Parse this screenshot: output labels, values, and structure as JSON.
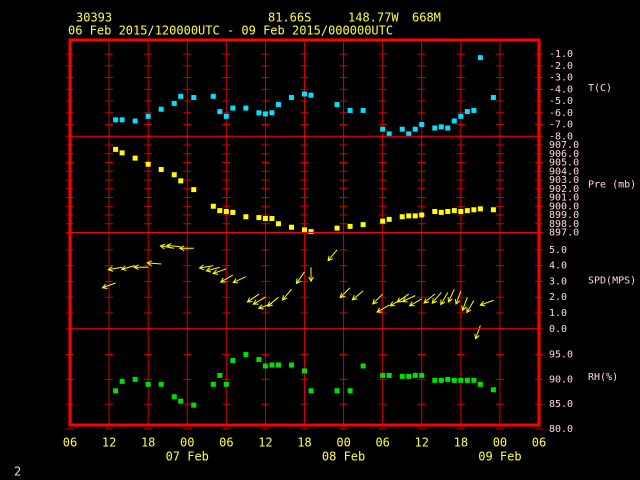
{
  "header": {
    "station": "30393",
    "lat": "81.66S",
    "lon": "148.77W",
    "elev": "668M",
    "period": "06 Feb 2015/120000UTC - 09 Feb 2015/000000UTC",
    "page": "2"
  },
  "x_axis": {
    "xlim": [
      "2015-02-06T06:00",
      "2015-02-09T06:00"
    ],
    "xticks": [
      {
        "value": "2015-02-06T06:00",
        "label": "06"
      },
      {
        "value": "2015-02-06T12:00",
        "label": "12"
      },
      {
        "value": "2015-02-06T18:00",
        "label": "18"
      },
      {
        "value": "2015-02-07T00:00",
        "label": "00"
      },
      {
        "value": "2015-02-07T06:00",
        "label": "06"
      },
      {
        "value": "2015-02-07T12:00",
        "label": "12"
      },
      {
        "value": "2015-02-07T18:00",
        "label": "18"
      },
      {
        "value": "2015-02-08T00:00",
        "label": "00"
      },
      {
        "value": "2015-02-08T06:00",
        "label": "06"
      },
      {
        "value": "2015-02-08T12:00",
        "label": "12"
      },
      {
        "value": "2015-02-08T18:00",
        "label": "18"
      },
      {
        "value": "2015-02-09T00:00",
        "label": "00"
      },
      {
        "value": "2015-02-09T06:00",
        "label": "06"
      }
    ],
    "date_labels": [
      {
        "value": "2015-02-07T00:00",
        "label": "07 Feb"
      },
      {
        "value": "2015-02-08T00:00",
        "label": "08 Feb"
      },
      {
        "value": "2015-02-09T00:00",
        "label": "09 Feb"
      }
    ],
    "x": [
      "2015-02-06T13:00",
      "2015-02-06T14:00",
      "2015-02-06T16:00",
      "2015-02-06T18:00",
      "2015-02-06T20:00",
      "2015-02-06T22:00",
      "2015-02-06T23:00",
      "2015-02-07T01:00",
      "2015-02-07T04:00",
      "2015-02-07T05:00",
      "2015-02-07T06:00",
      "2015-02-07T07:00",
      "2015-02-07T09:00",
      "2015-02-07T11:00",
      "2015-02-07T12:00",
      "2015-02-07T13:00",
      "2015-02-07T14:00",
      "2015-02-07T16:00",
      "2015-02-07T18:00",
      "2015-02-07T19:00",
      "2015-02-07T23:00",
      "2015-02-08T01:00",
      "2015-02-08T03:00",
      "2015-02-08T06:00",
      "2015-02-08T07:00",
      "2015-02-08T09:00",
      "2015-02-08T10:00",
      "2015-02-08T11:00",
      "2015-02-08T12:00",
      "2015-02-08T14:00",
      "2015-02-08T15:00",
      "2015-02-08T16:00",
      "2015-02-08T17:00",
      "2015-02-08T18:00",
      "2015-02-08T19:00",
      "2015-02-08T20:00",
      "2015-02-08T21:00",
      "2015-02-08T23:00"
    ]
  },
  "chart_data": [
    {
      "type": "scatter",
      "label": "T(C)",
      "color": "#00e0ff",
      "ylim": [
        -8,
        0.2
      ],
      "yticks": [
        {
          "value": -1,
          "label": "-1.0"
        },
        {
          "value": -2,
          "label": "-2.0"
        },
        {
          "value": -3,
          "label": "-3.0"
        },
        {
          "value": -4,
          "label": "-4.0"
        },
        {
          "value": -5,
          "label": "-5.0"
        },
        {
          "value": -6,
          "label": "-6.0"
        },
        {
          "value": -7,
          "label": "-7.0"
        },
        {
          "value": -8,
          "label": "-8.0"
        }
      ],
      "values": [
        -6.6,
        -6.6,
        -6.7,
        -6.3,
        -5.7,
        -5.2,
        -4.6,
        -4.7,
        -4.6,
        -5.9,
        -6.3,
        -5.6,
        -5.6,
        -6.0,
        -6.1,
        -6.0,
        -5.3,
        -4.7,
        -4.4,
        -4.5,
        -5.3,
        -5.8,
        -5.8,
        -7.4,
        -7.8,
        -7.4,
        -7.8,
        -7.4,
        -7.0,
        -7.3,
        -7.2,
        -7.3,
        -6.7,
        -6.3,
        -5.9,
        -5.8,
        -1.3,
        -4.7
      ]
    },
    {
      "type": "scatter",
      "label": "Pre (mb)",
      "color": "#ffff00",
      "ylim": [
        897,
        908
      ],
      "yticks": [
        {
          "value": 907,
          "label": "907.0"
        },
        {
          "value": 906,
          "label": "906.0"
        },
        {
          "value": 905,
          "label": "905.0"
        },
        {
          "value": 904,
          "label": "904.0"
        },
        {
          "value": 903,
          "label": "903.0"
        },
        {
          "value": 902,
          "label": "902.0"
        },
        {
          "value": 901,
          "label": "901.0"
        },
        {
          "value": 900,
          "label": "900.0"
        },
        {
          "value": 899,
          "label": "899.0"
        },
        {
          "value": 898,
          "label": "898.0"
        },
        {
          "value": 897,
          "label": "897.0"
        }
      ],
      "values": [
        906.5,
        906.1,
        905.5,
        904.8,
        904.2,
        903.6,
        902.9,
        901.9,
        900.0,
        899.5,
        899.4,
        899.3,
        898.8,
        898.7,
        898.6,
        898.6,
        898.0,
        897.6,
        897.3,
        897.1,
        897.5,
        897.7,
        897.9,
        898.3,
        898.5,
        898.8,
        898.9,
        898.9,
        899.0,
        899.4,
        899.3,
        899.4,
        899.5,
        899.4,
        899.5,
        899.6,
        899.7,
        899.6
      ]
    },
    {
      "type": "wind",
      "label": "SPD(MPS)",
      "color": "#ffff00",
      "ylim": [
        0,
        6.1
      ],
      "yticks": [
        {
          "value": 5,
          "label": "5.0"
        },
        {
          "value": 4,
          "label": "4.0"
        },
        {
          "value": 3,
          "label": "3.0"
        },
        {
          "value": 2,
          "label": "2.0"
        },
        {
          "value": 1,
          "label": "1.0"
        },
        {
          "value": 0,
          "label": "0.0"
        }
      ],
      "values": [
        2.9,
        3.9,
        4.0,
        3.9,
        4.1,
        5.1,
        5.2,
        5.1,
        4.0,
        3.9,
        3.8,
        3.4,
        3.3,
        2.2,
        2.0,
        1.6,
        2.0,
        2.5,
        3.6,
        3.9,
        5.0,
        2.6,
        2.4,
        2.2,
        1.5,
        1.9,
        2.2,
        2.1,
        1.9,
        2.2,
        2.3,
        2.3,
        2.5,
        2.4,
        2.0,
        1.8,
        0.2,
        1.8
      ],
      "direction": [
        70,
        80,
        75,
        90,
        95,
        100,
        95,
        90,
        80,
        75,
        70,
        60,
        65,
        55,
        60,
        70,
        50,
        40,
        35,
        0,
        40,
        45,
        50,
        45,
        60,
        60,
        55,
        65,
        60,
        50,
        40,
        30,
        25,
        20,
        20,
        30,
        20,
        70
      ]
    },
    {
      "type": "scatter",
      "label": "RH(%)",
      "color": "#00e000",
      "ylim": [
        80.8,
        100.2
      ],
      "yticks": [
        {
          "value": 95,
          "label": "95.0"
        },
        {
          "value": 90,
          "label": "90.0"
        },
        {
          "value": 85,
          "label": "85.0"
        },
        {
          "value": 80,
          "label": "80.0"
        }
      ],
      "values": [
        87.7,
        89.6,
        90.0,
        89.0,
        89.0,
        86.5,
        85.6,
        84.8,
        89.0,
        90.8,
        89.0,
        93.8,
        95.0,
        94.0,
        92.7,
        92.9,
        92.9,
        92.9,
        91.7,
        87.7,
        87.7,
        87.7,
        92.7,
        90.8,
        90.8,
        90.6,
        90.6,
        90.8,
        90.8,
        89.8,
        89.8,
        90.0,
        89.8,
        89.8,
        89.8,
        89.8,
        89.0,
        87.9
      ]
    }
  ]
}
